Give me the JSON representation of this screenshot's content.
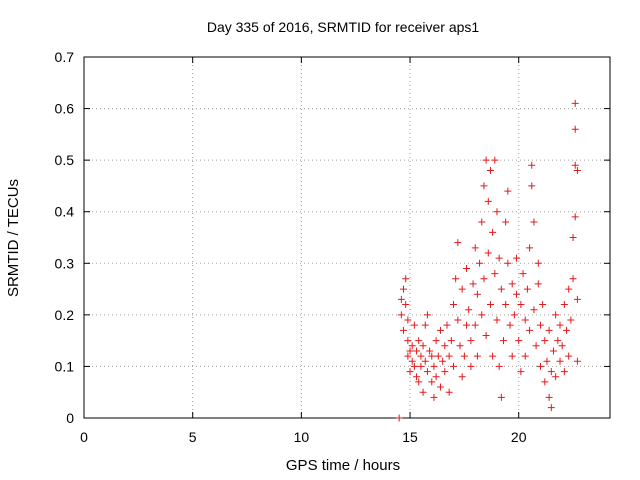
{
  "chart_data": {
    "type": "scatter",
    "title": "Day 335 of 2016, SRMTID for receiver aps1",
    "xlabel": "GPS time / hours",
    "ylabel": "SRMTID / TECUs",
    "xlim": [
      0,
      24.2
    ],
    "ylim": [
      0,
      0.7
    ],
    "xticks": [
      0,
      5,
      10,
      15,
      20
    ],
    "xtick_labels": [
      "0",
      "5",
      "10",
      "15",
      "20"
    ],
    "yticks": [
      0,
      0.1,
      0.2,
      0.3,
      0.4,
      0.5,
      0.6,
      0.7
    ],
    "ytick_labels": [
      "0",
      "0.1",
      "0.2",
      "0.3",
      "0.4",
      "0.5",
      "0.6",
      "0.7"
    ],
    "grid": true,
    "marker": "plus",
    "color": "#e41a1c",
    "series": [
      {
        "name": "SRMTID",
        "points": [
          [
            14.5,
            0.0
          ],
          [
            14.6,
            0.2
          ],
          [
            14.6,
            0.23
          ],
          [
            14.7,
            0.17
          ],
          [
            14.7,
            0.25
          ],
          [
            14.8,
            0.27
          ],
          [
            14.8,
            0.22
          ],
          [
            14.9,
            0.19
          ],
          [
            14.9,
            0.15
          ],
          [
            14.9,
            0.12
          ],
          [
            15.0,
            0.13
          ],
          [
            15.0,
            0.09
          ],
          [
            15.1,
            0.14
          ],
          [
            15.1,
            0.11
          ],
          [
            15.2,
            0.18
          ],
          [
            15.2,
            0.1
          ],
          [
            15.3,
            0.08
          ],
          [
            15.3,
            0.13
          ],
          [
            15.4,
            0.15
          ],
          [
            15.4,
            0.07
          ],
          [
            15.5,
            0.12
          ],
          [
            15.5,
            0.1
          ],
          [
            15.6,
            0.05
          ],
          [
            15.6,
            0.14
          ],
          [
            15.7,
            0.18
          ],
          [
            15.7,
            0.11
          ],
          [
            15.8,
            0.2
          ],
          [
            15.8,
            0.09
          ],
          [
            15.9,
            0.13
          ],
          [
            16.0,
            0.07
          ],
          [
            16.0,
            0.12
          ],
          [
            16.1,
            0.04
          ],
          [
            16.1,
            0.1
          ],
          [
            16.2,
            0.15
          ],
          [
            16.2,
            0.08
          ],
          [
            16.3,
            0.12
          ],
          [
            16.4,
            0.17
          ],
          [
            16.4,
            0.06
          ],
          [
            16.5,
            0.11
          ],
          [
            16.6,
            0.14
          ],
          [
            16.6,
            0.09
          ],
          [
            16.7,
            0.18
          ],
          [
            16.8,
            0.12
          ],
          [
            16.8,
            0.05
          ],
          [
            16.9,
            0.15
          ],
          [
            17.0,
            0.1
          ],
          [
            17.0,
            0.22
          ],
          [
            17.1,
            0.27
          ],
          [
            17.2,
            0.34
          ],
          [
            17.2,
            0.19
          ],
          [
            17.3,
            0.14
          ],
          [
            17.4,
            0.08
          ],
          [
            17.4,
            0.25
          ],
          [
            17.5,
            0.12
          ],
          [
            17.6,
            0.18
          ],
          [
            17.6,
            0.29
          ],
          [
            17.7,
            0.21
          ],
          [
            17.8,
            0.15
          ],
          [
            17.8,
            0.1
          ],
          [
            17.9,
            0.26
          ],
          [
            18.0,
            0.33
          ],
          [
            18.0,
            0.18
          ],
          [
            18.1,
            0.24
          ],
          [
            18.1,
            0.12
          ],
          [
            18.2,
            0.3
          ],
          [
            18.3,
            0.38
          ],
          [
            18.3,
            0.2
          ],
          [
            18.4,
            0.45
          ],
          [
            18.4,
            0.27
          ],
          [
            18.5,
            0.5
          ],
          [
            18.5,
            0.16
          ],
          [
            18.6,
            0.42
          ],
          [
            18.6,
            0.32
          ],
          [
            18.7,
            0.48
          ],
          [
            18.7,
            0.22
          ],
          [
            18.8,
            0.36
          ],
          [
            18.8,
            0.12
          ],
          [
            18.9,
            0.5
          ],
          [
            18.9,
            0.28
          ],
          [
            19.0,
            0.4
          ],
          [
            19.0,
            0.19
          ],
          [
            19.1,
            0.31
          ],
          [
            19.1,
            0.1
          ],
          [
            19.2,
            0.25
          ],
          [
            19.2,
            0.04
          ],
          [
            19.3,
            0.15
          ],
          [
            19.4,
            0.38
          ],
          [
            19.4,
            0.22
          ],
          [
            19.5,
            0.44
          ],
          [
            19.5,
            0.3
          ],
          [
            19.6,
            0.18
          ],
          [
            19.7,
            0.26
          ],
          [
            19.7,
            0.12
          ],
          [
            19.8,
            0.2
          ],
          [
            19.9,
            0.24
          ],
          [
            19.9,
            0.31
          ],
          [
            20.0,
            0.15
          ],
          [
            20.1,
            0.22
          ],
          [
            20.1,
            0.09
          ],
          [
            20.2,
            0.28
          ],
          [
            20.3,
            0.19
          ],
          [
            20.3,
            0.12
          ],
          [
            20.4,
            0.25
          ],
          [
            20.5,
            0.33
          ],
          [
            20.5,
            0.17
          ],
          [
            20.6,
            0.45
          ],
          [
            20.6,
            0.49
          ],
          [
            20.7,
            0.21
          ],
          [
            20.7,
            0.38
          ],
          [
            20.8,
            0.14
          ],
          [
            20.9,
            0.26
          ],
          [
            20.9,
            0.3
          ],
          [
            21.0,
            0.18
          ],
          [
            21.0,
            0.1
          ],
          [
            21.1,
            0.22
          ],
          [
            21.2,
            0.15
          ],
          [
            21.2,
            0.07
          ],
          [
            21.3,
            0.11
          ],
          [
            21.4,
            0.04
          ],
          [
            21.4,
            0.17
          ],
          [
            21.5,
            0.09
          ],
          [
            21.5,
            0.02
          ],
          [
            21.6,
            0.13
          ],
          [
            21.7,
            0.2
          ],
          [
            21.7,
            0.08
          ],
          [
            21.8,
            0.15
          ],
          [
            21.9,
            0.11
          ],
          [
            21.9,
            0.18
          ],
          [
            22.0,
            0.14
          ],
          [
            22.1,
            0.22
          ],
          [
            22.1,
            0.09
          ],
          [
            22.2,
            0.17
          ],
          [
            22.3,
            0.25
          ],
          [
            22.3,
            0.12
          ],
          [
            22.4,
            0.19
          ],
          [
            22.5,
            0.27
          ],
          [
            22.5,
            0.35
          ],
          [
            22.6,
            0.39
          ],
          [
            22.6,
            0.49
          ],
          [
            22.6,
            0.56
          ],
          [
            22.6,
            0.61
          ],
          [
            22.7,
            0.48
          ],
          [
            22.7,
            0.23
          ],
          [
            22.7,
            0.11
          ]
        ]
      }
    ]
  }
}
